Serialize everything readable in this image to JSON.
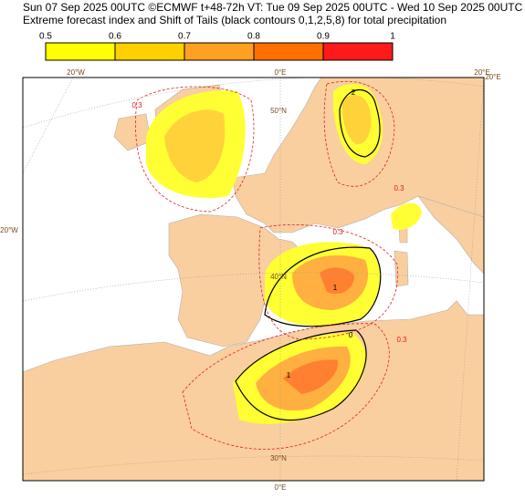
{
  "header": {
    "line1": "Sun 07 Sep 2025 00UTC ©ECMWF t+48-72h  VT: Tue 09 Sep 2025 00UTC - Wed 10 Sep 2025 00UTC",
    "line2": "Extreme forecast index and Shift of Tails (black contours 0,1,2,5,8) for total precipitation"
  },
  "colorbar": {
    "ticks": [
      0.5,
      0.6,
      0.7,
      0.8,
      0.9,
      1
    ],
    "colors": [
      "#ffff00",
      "#ffd000",
      "#ffa020",
      "#ff7000",
      "#ff1a1a"
    ]
  },
  "graticule_labels": [
    "20°W",
    "0°E",
    "20°E",
    "20°E",
    "20°W",
    "50°N",
    "40°N",
    "30°N",
    "0°E"
  ],
  "contour_labels": [
    "0.3",
    "0.3",
    "0.3",
    "0.3",
    "0",
    "1",
    "1",
    "2"
  ]
}
